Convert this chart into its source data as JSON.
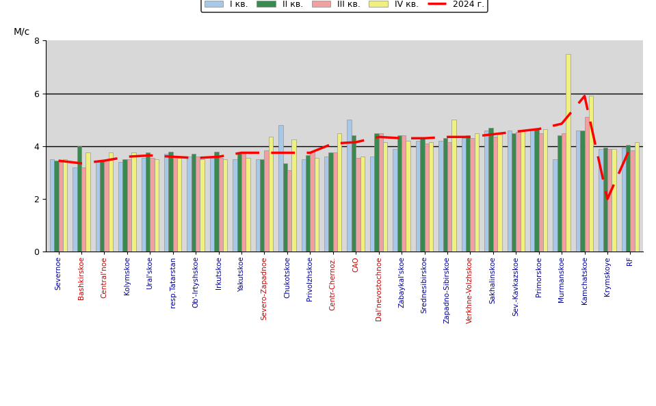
{
  "categories": [
    "Severnoe",
    "Bashkirskoe",
    "Central'noe",
    "Kolymskoe",
    "Ural'skoe",
    "resp.Tatarstan",
    "Ob'-Irtyshskoe",
    "Irkutskoe",
    "Yakutskoe",
    "Severo-Zapadnoe",
    "Chukotskoe",
    "Privolzhskoe",
    "Centr-Chernoz.",
    "CAO",
    "Dal'nevostochnoe",
    "Zabaykal'skoe",
    "Srednesibirskoe",
    "Zapadno-Sibirskoe",
    "Verkhne-Volzhskoe",
    "Sakhalinskoe",
    "Sev.-Kavkazskoe",
    "Primorskoe",
    "Murmanskoe",
    "Kamchatskoe",
    "Krymskoye",
    "RF"
  ],
  "q1": [
    3.5,
    3.2,
    3.4,
    3.4,
    3.55,
    3.7,
    3.6,
    3.55,
    3.5,
    3.5,
    4.8,
    3.5,
    3.6,
    5.0,
    3.6,
    3.9,
    4.2,
    4.2,
    4.3,
    4.6,
    4.6,
    4.6,
    3.5,
    4.6,
    3.9,
    3.95
  ],
  "q2": [
    3.45,
    4.0,
    3.45,
    3.5,
    3.75,
    3.8,
    3.7,
    3.8,
    3.75,
    3.5,
    3.35,
    3.65,
    3.75,
    4.4,
    4.5,
    4.4,
    4.3,
    4.3,
    4.4,
    4.7,
    4.5,
    4.65,
    4.4,
    4.6,
    3.95,
    4.05
  ],
  "q3": [
    3.4,
    3.2,
    3.45,
    3.5,
    3.55,
    3.6,
    3.6,
    3.55,
    3.8,
    3.85,
    3.1,
    3.8,
    3.75,
    3.55,
    4.5,
    4.4,
    4.1,
    4.15,
    4.3,
    4.35,
    4.55,
    4.5,
    4.5,
    5.1,
    3.9,
    3.85
  ],
  "q4": [
    3.5,
    3.75,
    3.75,
    3.75,
    3.5,
    3.55,
    3.5,
    3.5,
    3.55,
    4.35,
    4.25,
    3.55,
    4.5,
    3.6,
    4.15,
    4.2,
    4.15,
    5.0,
    4.5,
    4.5,
    4.6,
    4.65,
    7.5,
    5.9,
    3.9,
    4.15
  ],
  "line2024": [
    3.45,
    3.35,
    3.45,
    3.6,
    3.65,
    3.6,
    3.55,
    3.6,
    3.75,
    3.75,
    3.75,
    3.75,
    4.1,
    4.15,
    4.35,
    4.3,
    4.3,
    4.35,
    4.35,
    4.45,
    4.55,
    4.65,
    4.85,
    5.9,
    2.0,
    3.95
  ],
  "bar_color_q1": "#a8c8e8",
  "bar_color_q2": "#3a8a50",
  "bar_color_q3": "#f0a0a0",
  "bar_color_q4": "#f0f080",
  "line_color": "#ff0000",
  "ylabel": "М/с",
  "ylim": [
    0,
    8
  ],
  "yticks": [
    0,
    2,
    4,
    6,
    8
  ],
  "hlines": [
    4.0,
    6.0
  ],
  "legend_labels": [
    "I кв.",
    "II кв.",
    "III кв.",
    "IV кв.",
    "2024 г."
  ],
  "fig_bg": "#ffffff",
  "plot_bg": "#d8d8d8",
  "label_color_default": "#000000",
  "label_color_blue": "#cc0000",
  "blue_label_names": [
    "Bashkirskoe",
    "Central'noe",
    "Severo-Zapadnoe",
    "Dal'nevostochnoe",
    "Verkhne-Volzhskoe",
    "Centr-Chernoz.",
    "CAO"
  ],
  "tick_fontsize": 7.5,
  "ylabel_fontsize": 10
}
